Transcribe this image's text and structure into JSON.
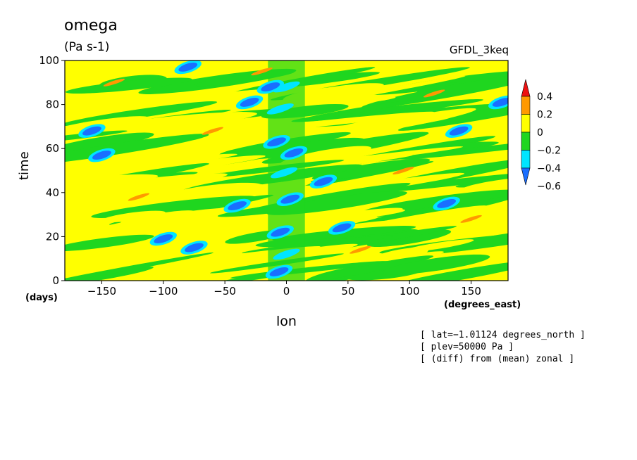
{
  "chart_data": {
    "type": "heatmap",
    "title": "omega",
    "units": "(Pa s-1)",
    "model": "GFDL_3keq",
    "xlabel": "lon",
    "ylabel": "time",
    "x_units": "(degrees_east)",
    "y_units": "(days)",
    "xlim": [
      -180,
      180
    ],
    "ylim": [
      0,
      100
    ],
    "x_ticks": [
      -150,
      -100,
      -50,
      0,
      50,
      100,
      150
    ],
    "y_ticks": [
      0,
      20,
      40,
      60,
      80,
      100
    ],
    "x_tick_labels": [
      "−150",
      "−100",
      "−50",
      "0",
      "50",
      "100",
      "150"
    ],
    "y_tick_labels": [
      "0",
      "20",
      "40",
      "60",
      "80",
      "100"
    ],
    "colorbar": {
      "levels": [
        -0.6,
        -0.4,
        -0.2,
        0,
        0.2,
        0.4
      ],
      "level_labels": [
        "−0.6",
        "−0.4",
        "−0.2",
        "0",
        "0.2",
        "0.4"
      ],
      "colors": [
        "#1a6eff",
        "#00e5ff",
        "#1fd61f",
        "#ffff00",
        "#ff9900",
        "#ee1111"
      ],
      "below_color": "#1a6eff",
      "above_color": "#ee1111"
    },
    "bands": [
      {
        "y": [
          93,
          100
        ],
        "value": 0.05
      },
      {
        "y": [
          86,
          93
        ],
        "value": -0.05
      },
      {
        "y": [
          79,
          86
        ],
        "value": 0.05
      },
      {
        "y": [
          72,
          79
        ],
        "value": -0.08
      },
      {
        "y": [
          65,
          72
        ],
        "value": 0.08
      },
      {
        "y": [
          58,
          65
        ],
        "value": -0.05
      },
      {
        "y": [
          51,
          58
        ],
        "value": 0.05
      },
      {
        "y": [
          44,
          51
        ],
        "value": -0.06
      },
      {
        "y": [
          37,
          44
        ],
        "value": 0.06
      },
      {
        "y": [
          30,
          37
        ],
        "value": -0.04
      },
      {
        "y": [
          23,
          30
        ],
        "value": 0.05
      },
      {
        "y": [
          16,
          23
        ],
        "value": -0.06
      },
      {
        "y": [
          9,
          16
        ],
        "value": 0.05
      },
      {
        "y": [
          0,
          9
        ],
        "value": -0.05
      }
    ],
    "features": [
      {
        "lon": 0,
        "time": 88,
        "value": -0.3
      },
      {
        "lon": -5,
        "time": 78,
        "value": -0.3
      },
      {
        "lon": -8,
        "time": 63,
        "value": -0.5
      },
      {
        "lon": 6,
        "time": 58,
        "value": -0.5
      },
      {
        "lon": -2,
        "time": 49,
        "value": -0.3
      },
      {
        "lon": 3,
        "time": 37,
        "value": -0.5
      },
      {
        "lon": -5,
        "time": 22,
        "value": -0.5
      },
      {
        "lon": -6,
        "time": 4,
        "value": -0.5
      },
      {
        "lon": 0,
        "time": 12,
        "value": -0.3
      },
      {
        "lon": -80,
        "time": 97,
        "value": -0.5
      },
      {
        "lon": -13,
        "time": 88,
        "value": -0.5
      },
      {
        "lon": -30,
        "time": 81,
        "value": -0.5
      },
      {
        "lon": -158,
        "time": 68,
        "value": -0.5
      },
      {
        "lon": -150,
        "time": 57,
        "value": -0.5
      },
      {
        "lon": -40,
        "time": 34,
        "value": -0.5
      },
      {
        "lon": -100,
        "time": 19,
        "value": -0.5
      },
      {
        "lon": -75,
        "time": 15,
        "value": -0.5
      },
      {
        "lon": 140,
        "time": 68,
        "value": -0.5
      },
      {
        "lon": 130,
        "time": 35,
        "value": -0.5
      },
      {
        "lon": 45,
        "time": 24,
        "value": -0.5
      },
      {
        "lon": 175,
        "time": 81,
        "value": -0.5
      },
      {
        "lon": 30,
        "time": 45,
        "value": -0.5
      },
      {
        "lon": -140,
        "time": 90,
        "value": 0.25
      },
      {
        "lon": -60,
        "time": 68,
        "value": 0.25
      },
      {
        "lon": 120,
        "time": 85,
        "value": 0.25
      },
      {
        "lon": 95,
        "time": 50,
        "value": 0.25
      },
      {
        "lon": -120,
        "time": 38,
        "value": 0.25
      },
      {
        "lon": 60,
        "time": 14,
        "value": 0.25
      },
      {
        "lon": -20,
        "time": 95,
        "value": 0.25
      },
      {
        "lon": 150,
        "time": 28,
        "value": 0.25
      }
    ],
    "grid": false,
    "legend": "colorbar-right"
  },
  "annotations": [
    "[ lat=−1.01124 degrees_north ]",
    "[ plev=50000 Pa ]",
    "[ (diff) from (mean) zonal ]"
  ]
}
